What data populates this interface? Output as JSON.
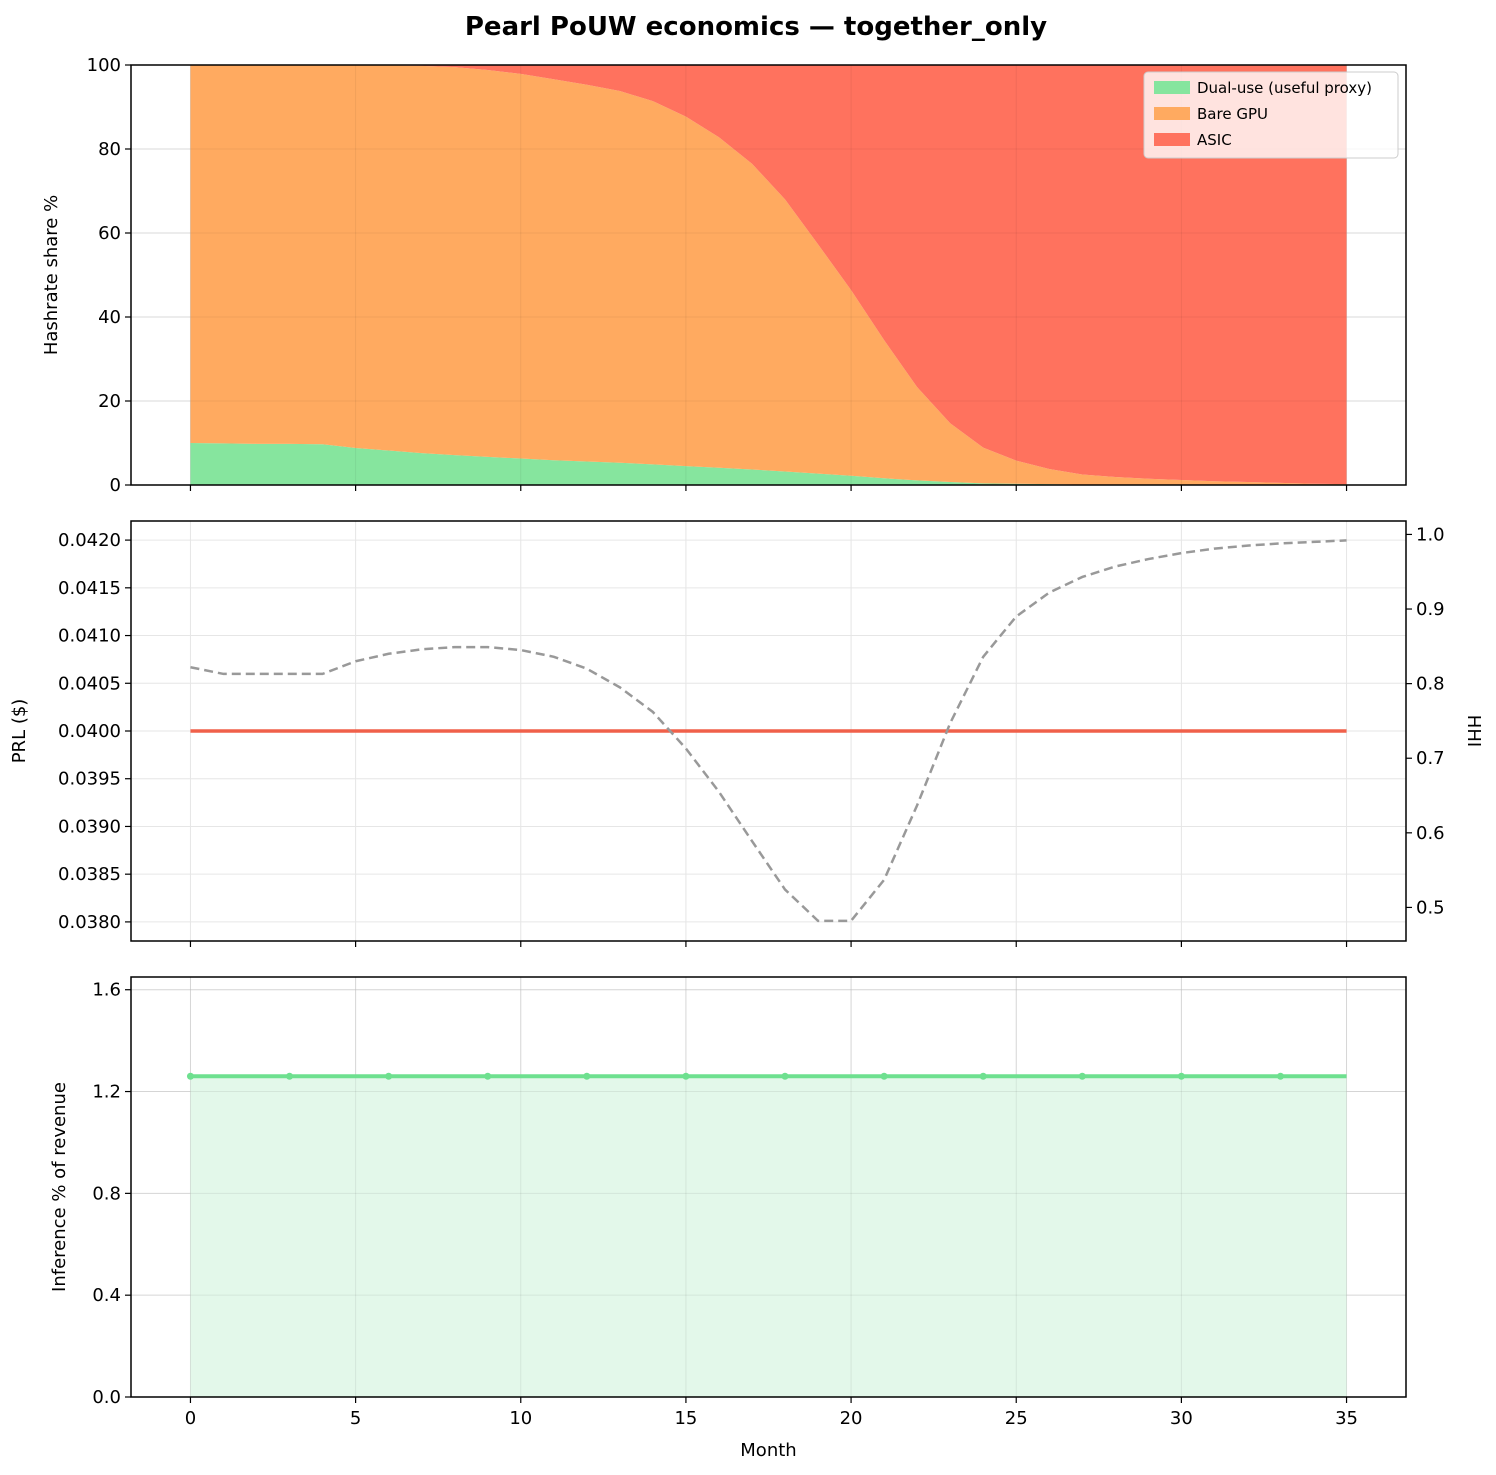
{
  "figure_title": "Pearl PoUW economics — together_only",
  "chart_data": [
    {
      "type": "area",
      "stacked": true,
      "ylabel": "Hashrate share %",
      "xlabel": "",
      "xlim": [
        -1.8,
        36.8
      ],
      "ylim": [
        0,
        100
      ],
      "xticks": [
        0,
        5,
        10,
        15,
        20,
        25,
        30,
        35
      ],
      "yticks": [
        0,
        20,
        40,
        60,
        80,
        100
      ],
      "grid": true,
      "legend_position": "top-right",
      "x": [
        0,
        1,
        2,
        3,
        4,
        5,
        6,
        7,
        8,
        9,
        10,
        11,
        12,
        13,
        14,
        15,
        16,
        17,
        18,
        19,
        20,
        21,
        22,
        23,
        24,
        25,
        26,
        27,
        28,
        29,
        30,
        31,
        32,
        33,
        34,
        35
      ],
      "series": [
        {
          "name": "Dual-use (useful proxy)",
          "color": "#86e59e",
          "values": [
            10,
            9.9,
            9.8,
            9.8,
            9.7,
            8.8,
            8.2,
            7.6,
            7.1,
            6.7,
            6.3,
            5.9,
            5.6,
            5.3,
            4.9,
            4.5,
            4.1,
            3.7,
            3.2,
            2.7,
            2.2,
            1.6,
            1.1,
            0.7,
            0.4,
            0.3,
            0.2,
            0.1,
            0.1,
            0.1,
            0,
            0,
            0,
            0,
            0,
            0
          ]
        },
        {
          "name": "Bare GPU",
          "color": "#ffaa60",
          "values": [
            90,
            90.1,
            90.2,
            90.2,
            90.3,
            91.2,
            91.7,
            92.2,
            92.4,
            92.1,
            91.6,
            90.7,
            89.7,
            88.5,
            86.5,
            83.2,
            78.7,
            72.8,
            64.8,
            54.6,
            44.2,
            32.9,
            22.2,
            14,
            8.5,
            5.5,
            3.6,
            2.4,
            1.8,
            1.4,
            1.2,
            0.9,
            0.7,
            0.5,
            0.3,
            0.2
          ]
        },
        {
          "name": "ASIC",
          "color": "#ff725e",
          "values": [
            0,
            0,
            0,
            0,
            0,
            0,
            0.1,
            0.2,
            0.5,
            1.2,
            2.1,
            3.4,
            4.7,
            6.2,
            8.6,
            12.3,
            17.2,
            23.5,
            32,
            42.7,
            53.6,
            65.5,
            76.7,
            85.3,
            91.1,
            94.2,
            96.2,
            97.5,
            98.1,
            98.5,
            98.8,
            99.1,
            99.3,
            99.5,
            99.7,
            99.8
          ]
        }
      ]
    },
    {
      "type": "line",
      "ylabel": "PRL ($)",
      "y2label": "HHI",
      "xlabel": "",
      "xlim": [
        -1.8,
        36.8
      ],
      "ylim": [
        0.0378,
        0.0422
      ],
      "y2lim": [
        0.455,
        1.018
      ],
      "xticks": [
        0,
        5,
        10,
        15,
        20,
        25,
        30,
        35
      ],
      "yticks": [
        0.038,
        0.0385,
        0.039,
        0.0395,
        0.04,
        0.0405,
        0.041,
        0.0415,
        0.042
      ],
      "ytick_labels": [
        "0.0380",
        "0.0385",
        "0.0390",
        "0.0395",
        "0.0400",
        "0.0405",
        "0.0410",
        "0.0415",
        "0.0420"
      ],
      "y2ticks": [
        0.5,
        0.6,
        0.7,
        0.8,
        0.9,
        1.0
      ],
      "y2tick_labels": [
        "0.5",
        "0.6",
        "0.7",
        "0.8",
        "0.9",
        "1.0"
      ],
      "grid": true,
      "x": [
        0,
        1,
        2,
        3,
        4,
        5,
        6,
        7,
        8,
        9,
        10,
        11,
        12,
        13,
        14,
        15,
        16,
        17,
        18,
        19,
        20,
        21,
        22,
        23,
        24,
        25,
        26,
        27,
        28,
        29,
        30,
        31,
        32,
        33,
        34,
        35
      ],
      "series": [
        {
          "axis": "left",
          "color": "#f0604a",
          "style": "solid",
          "values": [
            0.04,
            0.04,
            0.04,
            0.04,
            0.04,
            0.04,
            0.04,
            0.04,
            0.04,
            0.04,
            0.04,
            0.04,
            0.04,
            0.04,
            0.04,
            0.04,
            0.04,
            0.04,
            0.04,
            0.04,
            0.04,
            0.04,
            0.04,
            0.04,
            0.04,
            0.04,
            0.04,
            0.04,
            0.04,
            0.04,
            0.04,
            0.04,
            0.04,
            0.04,
            0.04,
            0.04
          ]
        },
        {
          "axis": "right",
          "color": "#999999",
          "style": "dashed",
          "values": [
            0.822,
            0.813,
            0.813,
            0.813,
            0.813,
            0.83,
            0.84,
            0.846,
            0.849,
            0.849,
            0.845,
            0.836,
            0.82,
            0.795,
            0.762,
            0.713,
            0.655,
            0.589,
            0.524,
            0.482,
            0.482,
            0.537,
            0.637,
            0.747,
            0.836,
            0.89,
            0.922,
            0.943,
            0.957,
            0.967,
            0.975,
            0.981,
            0.985,
            0.988,
            0.99,
            0.992
          ]
        }
      ]
    },
    {
      "type": "area",
      "ylabel": "Inference % of revenue",
      "xlabel": "Month",
      "xlim": [
        -1.8,
        36.8
      ],
      "ylim": [
        0,
        1.65
      ],
      "xticks": [
        0,
        5,
        10,
        15,
        20,
        25,
        30,
        35
      ],
      "yticks": [
        0,
        0.4,
        0.8,
        1.2,
        1.6
      ],
      "ytick_labels": [
        "0.0",
        "0.4",
        "0.8",
        "1.2",
        "1.6"
      ],
      "grid": true,
      "x": [
        0,
        1,
        2,
        3,
        4,
        5,
        6,
        7,
        8,
        9,
        10,
        11,
        12,
        13,
        14,
        15,
        16,
        17,
        18,
        19,
        20,
        21,
        22,
        23,
        24,
        25,
        26,
        27,
        28,
        29,
        30,
        31,
        32,
        33,
        34,
        35
      ],
      "markers_every": 3,
      "series": [
        {
          "color": "#6ee08f",
          "fill": "#e3f8ea",
          "values": [
            1.26,
            1.26,
            1.26,
            1.26,
            1.26,
            1.26,
            1.26,
            1.26,
            1.26,
            1.26,
            1.26,
            1.26,
            1.26,
            1.26,
            1.26,
            1.26,
            1.26,
            1.26,
            1.26,
            1.26,
            1.26,
            1.26,
            1.26,
            1.26,
            1.26,
            1.26,
            1.26,
            1.26,
            1.26,
            1.26,
            1.26,
            1.26,
            1.26,
            1.26,
            1.26,
            1.26
          ]
        }
      ]
    }
  ]
}
